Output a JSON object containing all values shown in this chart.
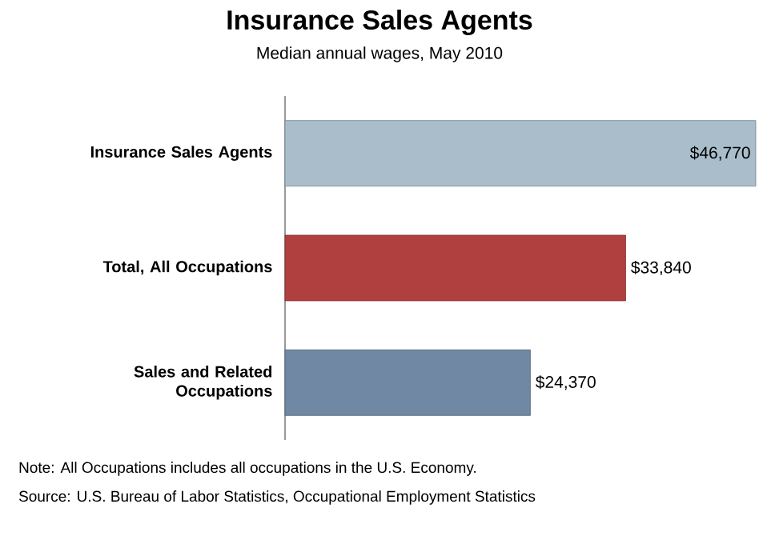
{
  "chart_data": {
    "type": "bar",
    "orientation": "horizontal",
    "title": "Insurance Sales Agents",
    "subtitle": "Median annual wages, May 2010",
    "categories": [
      "Insurance Sales Agents",
      "Total, All Occupations",
      "Sales and Related Occupations"
    ],
    "values": [
      46770,
      33840,
      24370
    ],
    "colors": [
      "#a9bdcb",
      "#b0403f",
      "#7088a4"
    ],
    "value_labels": [
      "$46,770",
      "$33,840",
      "$24,370"
    ],
    "annotations": [
      "Note: All Occupations includes all occupations in the U.S. Economy.",
      "Source: U.S. Bureau of Labor Statistics, Occupational Employment Statistics"
    ]
  }
}
